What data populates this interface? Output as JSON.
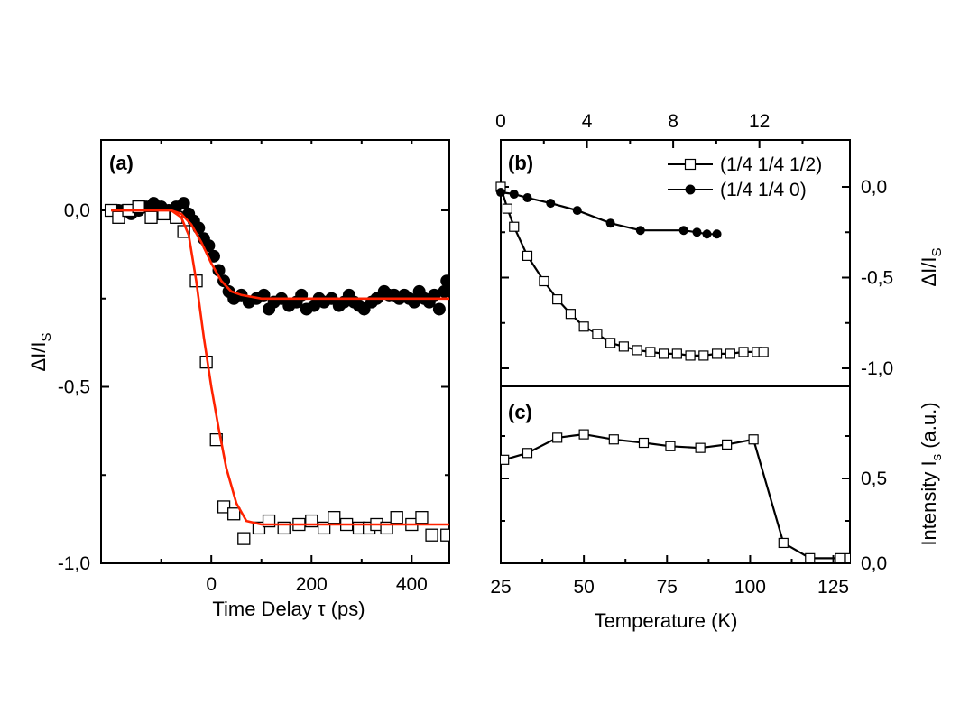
{
  "chart_data": [
    {
      "panel": "(a)",
      "type": "scatter",
      "xlabel": "Time Delay τ (ps)",
      "ylabel": "ΔI/I_S",
      "xlim": [
        -220,
        475
      ],
      "ylim": [
        -1.0,
        0.05
      ],
      "xticks": [
        0,
        200,
        400
      ],
      "xtick_labels": [
        "0",
        "200",
        "400"
      ],
      "yticks": [
        0.0,
        -0.5,
        -1.0
      ],
      "ytick_labels": [
        "0,0",
        "-0,5",
        "-1,0"
      ],
      "series": [
        {
          "marker": "filled-circle",
          "x": [
            -185,
            -175,
            -160,
            -145,
            -130,
            -115,
            -100,
            -85,
            -70,
            -55,
            -45,
            -35,
            -25,
            -15,
            -5,
            5,
            15,
            25,
            35,
            45,
            60,
            75,
            90,
            105,
            115,
            125,
            140,
            155,
            170,
            180,
            190,
            205,
            215,
            225,
            240,
            255,
            265,
            275,
            285,
            295,
            305,
            320,
            330,
            345,
            355,
            365,
            375,
            385,
            395,
            405,
            415,
            425,
            435,
            445,
            455,
            465,
            470
          ],
          "y": [
            0.0,
            0.0,
            -0.01,
            0.0,
            0.01,
            0.02,
            0.01,
            0.0,
            0.01,
            0.02,
            -0.01,
            -0.03,
            -0.05,
            -0.08,
            -0.1,
            -0.13,
            -0.17,
            -0.2,
            -0.23,
            -0.25,
            -0.24,
            -0.26,
            -0.25,
            -0.24,
            -0.28,
            -0.26,
            -0.25,
            -0.27,
            -0.26,
            -0.24,
            -0.28,
            -0.27,
            -0.25,
            -0.26,
            -0.25,
            -0.27,
            -0.26,
            -0.24,
            -0.26,
            -0.27,
            -0.28,
            -0.26,
            -0.25,
            -0.23,
            -0.24,
            -0.24,
            -0.25,
            -0.24,
            -0.25,
            -0.26,
            -0.23,
            -0.25,
            -0.26,
            -0.24,
            -0.28,
            -0.23,
            -0.2
          ]
        },
        {
          "marker": "open-square",
          "x": [
            -200,
            -185,
            -165,
            -145,
            -120,
            -95,
            -70,
            -55,
            -30,
            -10,
            10,
            25,
            45,
            65,
            95,
            115,
            145,
            175,
            200,
            225,
            245,
            270,
            295,
            315,
            330,
            350,
            370,
            400,
            420,
            440,
            470
          ],
          "y": [
            0.0,
            -0.02,
            0.0,
            0.01,
            -0.02,
            -0.01,
            -0.02,
            -0.06,
            -0.2,
            -0.43,
            -0.65,
            -0.84,
            -0.86,
            -0.93,
            -0.9,
            -0.88,
            -0.9,
            -0.89,
            -0.88,
            -0.9,
            -0.87,
            -0.89,
            -0.9,
            -0.9,
            -0.89,
            -0.9,
            -0.87,
            -0.89,
            -0.87,
            -0.92,
            -0.92
          ]
        },
        {
          "name": "",
          "marker": "line",
          "color": "#ff2200",
          "x": [
            -200,
            -120,
            -80,
            -60,
            -45,
            -30,
            -15,
            0,
            15,
            30,
            50,
            70,
            100,
            200,
            300,
            400,
            475
          ],
          "y": [
            0.0,
            0.0,
            0.0,
            -0.02,
            -0.07,
            -0.2,
            -0.36,
            -0.5,
            -0.62,
            -0.73,
            -0.83,
            -0.88,
            -0.89,
            -0.89,
            -0.89,
            -0.89,
            -0.89
          ]
        },
        {
          "name": "",
          "marker": "line",
          "color": "#ff2200",
          "x": [
            -200,
            -80,
            -60,
            -40,
            -20,
            0,
            20,
            40,
            60,
            100,
            200,
            300,
            400,
            475
          ],
          "y": [
            0.0,
            0.0,
            -0.01,
            -0.04,
            -0.09,
            -0.15,
            -0.2,
            -0.23,
            -0.24,
            -0.25,
            -0.25,
            -0.25,
            -0.25,
            -0.25
          ]
        }
      ]
    },
    {
      "panel": "(b)",
      "type": "line",
      "ylabel": "ΔI/I_S",
      "xlim": [
        25,
        130
      ],
      "top_xlim": [
        0,
        16.2
      ],
      "top_xticks": [
        0,
        4,
        8,
        12
      ],
      "ylim": [
        -1.07,
        0.12
      ],
      "yticks": [
        0.0,
        -0.5,
        -1.0
      ],
      "ytick_labels": [
        "0,0",
        "-0,5",
        "-1,0"
      ],
      "legend_position": "top-right",
      "series": [
        {
          "name": "(1/4 1/4 1/2)",
          "marker": "open-square",
          "x": [
            25,
            27,
            29,
            33,
            38,
            42,
            46,
            50,
            54,
            58,
            62,
            66,
            70,
            74,
            78,
            82,
            86,
            90,
            94,
            98,
            102,
            104
          ],
          "y": [
            0.0,
            -0.12,
            -0.22,
            -0.38,
            -0.52,
            -0.62,
            -0.7,
            -0.77,
            -0.81,
            -0.86,
            -0.88,
            -0.9,
            -0.91,
            -0.92,
            -0.92,
            -0.93,
            -0.93,
            -0.92,
            -0.92,
            -0.91,
            -0.91,
            -0.91
          ]
        },
        {
          "name": "(1/4 1/4 0)",
          "marker": "filled-circle",
          "x": [
            25,
            29,
            33,
            40,
            48,
            58,
            67,
            80,
            84,
            87,
            90
          ],
          "y": [
            -0.03,
            -0.04,
            -0.06,
            -0.09,
            -0.13,
            -0.2,
            -0.24,
            -0.24,
            -0.25,
            -0.26,
            -0.26
          ]
        }
      ]
    },
    {
      "panel": "(c)",
      "type": "line",
      "xlabel": "Temperature (K)",
      "ylabel": "Intensity I_s (a.u.)",
      "xlim": [
        25,
        130
      ],
      "xticks": [
        25,
        50,
        75,
        100,
        125
      ],
      "ylim": [
        0.0,
        0.9
      ],
      "yticks": [
        0.0,
        0.5
      ],
      "ytick_labels": [
        "0,0",
        "0,5"
      ],
      "series": [
        {
          "name": "",
          "marker": "open-square",
          "x": [
            26,
            33,
            42,
            50,
            59,
            68,
            76,
            85,
            93,
            101,
            110,
            118,
            127,
            130
          ],
          "y": [
            0.61,
            0.65,
            0.74,
            0.76,
            0.73,
            0.71,
            0.69,
            0.68,
            0.7,
            0.73,
            0.12,
            0.03,
            0.03,
            0.03
          ]
        }
      ]
    }
  ],
  "labels": {
    "a_panel": "(a)",
    "b_panel": "(b)",
    "c_panel": "(c)",
    "a_xlabel": "Time Delay τ (ps)",
    "a_ylabel_main": "ΔI/I",
    "a_ylabel_sub": "S",
    "b_ylabel_main": "ΔI/I",
    "b_ylabel_sub": "S",
    "c_ylabel_main": "Intensity I",
    "c_ylabel_sub": "s",
    "c_ylabel_tail": " (a.u.)",
    "bc_xlabel": "Temperature (K)",
    "legend_1": "(1/4 1/4 1/2)",
    "legend_2": "(1/4 1/4 0)"
  }
}
